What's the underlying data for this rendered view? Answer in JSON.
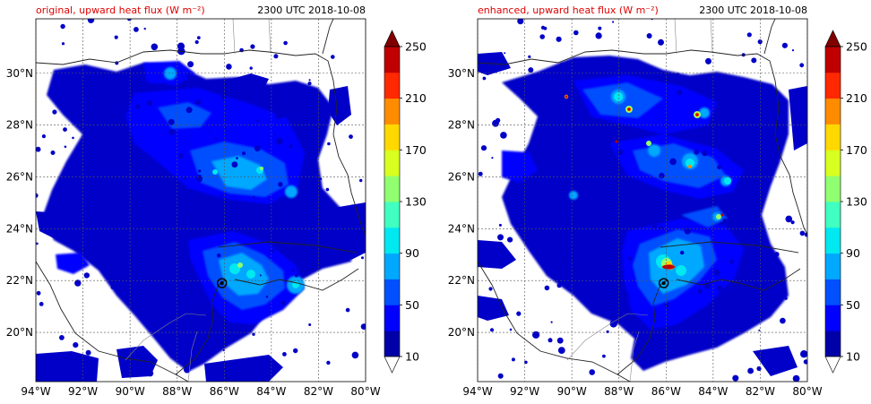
{
  "figure": {
    "lon_range": [
      -94,
      -80
    ],
    "lat_range": [
      18.1,
      32.1
    ],
    "lon_ticks": [
      "94°W",
      "92°W",
      "90°W",
      "88°W",
      "86°W",
      "84°W",
      "82°W",
      "80°W"
    ],
    "lon_values": [
      -94,
      -92,
      -90,
      -88,
      -86,
      -84,
      -82,
      -80
    ],
    "lat_ticks": [
      "20°N",
      "22°N",
      "24°N",
      "26°N",
      "28°N",
      "30°N"
    ],
    "lat_values": [
      20,
      22,
      24,
      26,
      28,
      30
    ],
    "grid": "dashed",
    "ocean_color": "#ffffff"
  },
  "panels": [
    {
      "title": "original, upward heat flux (W m⁻²)",
      "time": "2300 UTC 2018-10-08",
      "variant": "original"
    },
    {
      "title": "enhanced, upward heat flux (W m⁻²)",
      "time": "2300 UTC 2018-10-08",
      "variant": "enhanced"
    }
  ],
  "colorbar": {
    "levels": [
      10,
      30,
      50,
      70,
      90,
      110,
      130,
      150,
      170,
      190,
      210,
      230,
      250
    ],
    "tick_labels": [
      "10",
      "50",
      "90",
      "130",
      "170",
      "210",
      "250"
    ],
    "tick_values": [
      10,
      50,
      90,
      130,
      170,
      210,
      250
    ],
    "colors": [
      "#0000a8",
      "#0000ff",
      "#0050ff",
      "#00a8ff",
      "#00e8f0",
      "#40ffc0",
      "#90ff70",
      "#d8ff20",
      "#ffd800",
      "#ff8c00",
      "#ff2800",
      "#c00000"
    ],
    "under_color": "#ffffff",
    "over_color": "#800000",
    "extend": "both"
  },
  "storm_center": {
    "lon": -86.1,
    "lat": 21.9
  }
}
